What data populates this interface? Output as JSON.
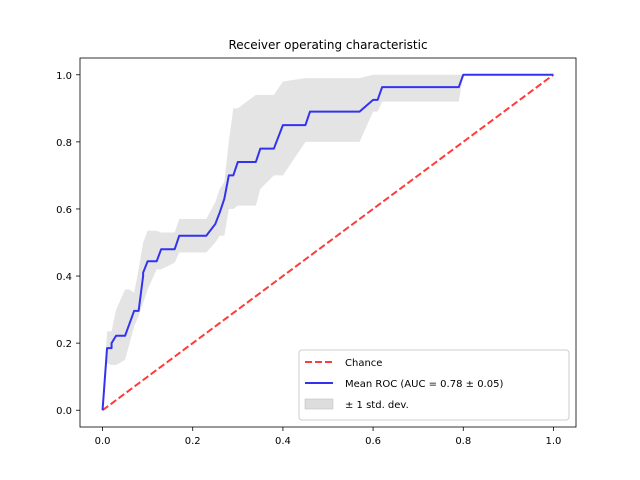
{
  "chart_data": {
    "type": "line",
    "title": "Receiver operating characteristic",
    "xlabel": "",
    "ylabel": "",
    "xlim": [
      -0.05,
      1.05
    ],
    "ylim": [
      -0.05,
      1.05
    ],
    "xticks": [
      0.0,
      0.2,
      0.4,
      0.6,
      0.8,
      1.0
    ],
    "yticks": [
      0.0,
      0.2,
      0.4,
      0.6,
      0.8,
      1.0
    ],
    "tick_labels": [
      "0.0",
      "0.2",
      "0.4",
      "0.6",
      "0.8",
      "1.0"
    ],
    "grid": false,
    "legend_position": "lower-right",
    "series": [
      {
        "name": "Chance",
        "style": "dashed",
        "color": "#ff3b3b",
        "x": [
          0,
          1
        ],
        "y": [
          0,
          1
        ]
      },
      {
        "name": "Mean ROC (AUC = 0.78 ± 0.05)",
        "style": "solid",
        "color": "#3333ee",
        "x": [
          0,
          0.01,
          0.02,
          0.02,
          0.03,
          0.05,
          0.07,
          0.08,
          0.09,
          0.09,
          0.1,
          0.12,
          0.13,
          0.16,
          0.17,
          0.23,
          0.25,
          0.26,
          0.27,
          0.28,
          0.29,
          0.3,
          0.34,
          0.35,
          0.38,
          0.4,
          0.45,
          0.46,
          0.56,
          0.57,
          0.6,
          0.61,
          0.62,
          0.78,
          0.79,
          0.8,
          1.0
        ],
        "y": [
          0,
          0.185,
          0.185,
          0.2,
          0.222,
          0.222,
          0.296,
          0.296,
          0.4,
          0.41,
          0.444,
          0.444,
          0.48,
          0.48,
          0.52,
          0.52,
          0.555,
          0.59,
          0.63,
          0.7,
          0.7,
          0.74,
          0.74,
          0.78,
          0.78,
          0.85,
          0.85,
          0.89,
          0.89,
          0.89,
          0.925,
          0.925,
          0.963,
          0.963,
          0.963,
          1.0,
          1.0
        ]
      }
    ],
    "band": {
      "name": "± 1 std. dev.",
      "color": "#dddddd",
      "x": [
        0,
        0.01,
        0.02,
        0.03,
        0.05,
        0.06,
        0.07,
        0.08,
        0.09,
        0.1,
        0.12,
        0.13,
        0.16,
        0.17,
        0.23,
        0.25,
        0.26,
        0.27,
        0.28,
        0.29,
        0.3,
        0.34,
        0.35,
        0.38,
        0.4,
        0.45,
        0.46,
        0.56,
        0.57,
        0.6,
        0.61,
        0.62,
        0.78,
        0.79,
        0.8,
        1.0
      ],
      "upper": [
        0,
        0.235,
        0.235,
        0.3,
        0.36,
        0.36,
        0.35,
        0.42,
        0.5,
        0.535,
        0.535,
        0.53,
        0.53,
        0.57,
        0.57,
        0.62,
        0.66,
        0.68,
        0.8,
        0.9,
        0.9,
        0.94,
        0.94,
        0.94,
        0.98,
        0.99,
        0.99,
        0.99,
        0.99,
        1.0,
        1.0,
        1.0,
        1.0,
        1.0,
        1.0,
        1.0
      ],
      "lower": [
        0,
        0.14,
        0.135,
        0.135,
        0.15,
        0.2,
        0.25,
        0.28,
        0.32,
        0.36,
        0.42,
        0.42,
        0.44,
        0.47,
        0.47,
        0.5,
        0.52,
        0.52,
        0.6,
        0.6,
        0.61,
        0.61,
        0.66,
        0.7,
        0.7,
        0.8,
        0.8,
        0.8,
        0.8,
        0.89,
        0.89,
        0.92,
        0.92,
        0.92,
        1.0,
        1.0
      ]
    }
  }
}
